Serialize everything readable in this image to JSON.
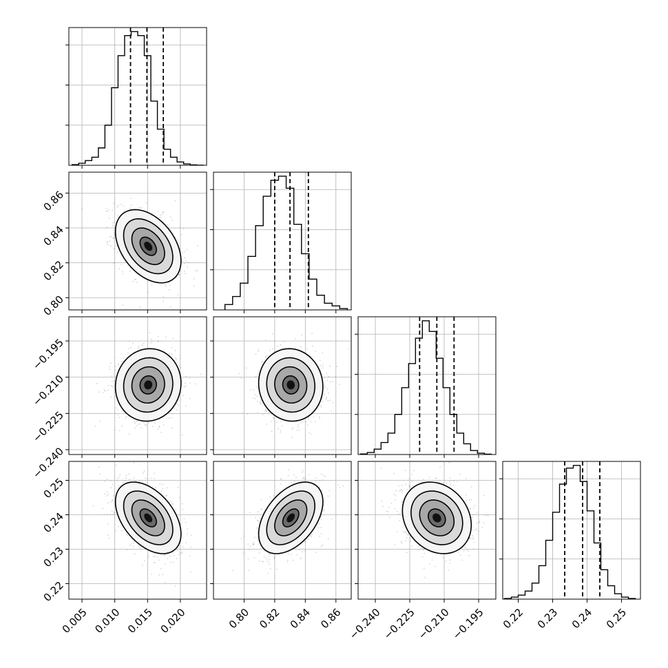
{
  "figure": {
    "type": "corner-plot",
    "background": "#ffffff",
    "panel_border_color": "#000000",
    "grid": true,
    "grid_color": "#b0b0b0",
    "scatter_color": "#888888",
    "density_colormap": [
      "#ffffff",
      "#000000"
    ],
    "quantile_line_style": "dashed"
  },
  "chart_data": [
    {
      "id": "hist-0",
      "type": "histogram",
      "row": 0,
      "col": 0,
      "xlim": [
        0.003,
        0.024
      ],
      "bins": [
        0.0035,
        0.0045,
        0.0055,
        0.0065,
        0.0075,
        0.0085,
        0.0095,
        0.0105,
        0.0115,
        0.0125,
        0.0135,
        0.0145,
        0.0155,
        0.0165,
        0.0175,
        0.0185,
        0.0195,
        0.0205,
        0.0215,
        0.0225,
        0.0235
      ],
      "counts": [
        0.005,
        0.015,
        0.035,
        0.06,
        0.13,
        0.3,
        0.58,
        0.82,
        0.97,
        1.0,
        0.97,
        0.82,
        0.48,
        0.27,
        0.12,
        0.06,
        0.025,
        0.01,
        0.003,
        0.001
      ],
      "quantiles": [
        0.0124,
        0.0149,
        0.0174
      ]
    },
    {
      "id": "hist-1",
      "type": "histogram",
      "row": 1,
      "col": 1,
      "xlim": [
        0.78,
        0.87
      ],
      "bins": [
        0.7875,
        0.7925,
        0.7975,
        0.8025,
        0.8075,
        0.8125,
        0.8175,
        0.8225,
        0.8275,
        0.8325,
        0.8375,
        0.8425,
        0.8475,
        0.8525,
        0.8575,
        0.8625,
        0.8675
      ],
      "counts": [
        0.04,
        0.1,
        0.2,
        0.4,
        0.63,
        0.85,
        0.97,
        1.0,
        0.91,
        0.64,
        0.42,
        0.23,
        0.11,
        0.05,
        0.03,
        0.01
      ],
      "quantiles": [
        0.82,
        0.83,
        0.842
      ]
    },
    {
      "id": "hist-2",
      "type": "histogram",
      "row": 2,
      "col": 2,
      "xlim": [
        -0.2475,
        -0.1875
      ],
      "bins": [
        -0.2465,
        -0.2435,
        -0.2405,
        -0.2375,
        -0.2345,
        -0.2315,
        -0.2285,
        -0.2255,
        -0.2225,
        -0.2195,
        -0.2165,
        -0.2135,
        -0.2105,
        -0.2075,
        -0.2045,
        -0.2015,
        -0.1985,
        -0.1955,
        -0.1925,
        -0.1895
      ],
      "counts": [
        0.004,
        0.015,
        0.04,
        0.09,
        0.16,
        0.3,
        0.5,
        0.68,
        0.87,
        1.0,
        0.92,
        0.72,
        0.5,
        0.3,
        0.16,
        0.08,
        0.03,
        0.01,
        0.003
      ],
      "quantiles": [
        -0.2207,
        -0.2132,
        -0.2057
      ]
    },
    {
      "id": "hist-3",
      "type": "histogram",
      "row": 3,
      "col": 3,
      "xlim": [
        0.2155,
        0.2555
      ],
      "bins": [
        0.216,
        0.218,
        0.22,
        0.222,
        0.224,
        0.226,
        0.228,
        0.23,
        0.232,
        0.234,
        0.236,
        0.238,
        0.24,
        0.242,
        0.244,
        0.246,
        0.248,
        0.25,
        0.252,
        0.254
      ],
      "counts": [
        0.005,
        0.015,
        0.03,
        0.06,
        0.12,
        0.25,
        0.44,
        0.65,
        0.86,
        0.98,
        1.0,
        0.88,
        0.66,
        0.42,
        0.22,
        0.1,
        0.04,
        0.015,
        0.005
      ],
      "quantiles": [
        0.2335,
        0.2387,
        0.2437
      ]
    },
    {
      "id": "joint-1-0",
      "type": "scatter-density-contour",
      "row": 1,
      "col": 0,
      "xlim": [
        0.003,
        0.024
      ],
      "ylim": [
        0.793,
        0.872
      ],
      "center": [
        0.0151,
        0.8295
      ],
      "sigma": [
        0.0025,
        0.0105
      ],
      "rho": -0.4,
      "contour_levels_sigma": [
        0.5,
        1.0,
        1.5,
        2.0
      ]
    },
    {
      "id": "joint-2-0",
      "type": "scatter-density-contour",
      "row": 2,
      "col": 0,
      "xlim": [
        0.003,
        0.024
      ],
      "ylim": [
        -0.242,
        -0.185
      ],
      "center": [
        0.0151,
        -0.2132
      ],
      "sigma": [
        0.0025,
        0.0075
      ],
      "rho": 0.05,
      "contour_levels_sigma": [
        0.5,
        1.0,
        1.5,
        2.0
      ]
    },
    {
      "id": "joint-2-1",
      "type": "scatter-density-contour",
      "row": 2,
      "col": 1,
      "xlim": [
        0.78,
        0.87
      ],
      "ylim": [
        -0.242,
        -0.185
      ],
      "center": [
        0.8305,
        -0.2132
      ],
      "sigma": [
        0.0105,
        0.0075
      ],
      "rho": -0.05,
      "contour_levels_sigma": [
        0.5,
        1.0,
        1.5,
        2.0
      ]
    },
    {
      "id": "joint-3-0",
      "type": "scatter-density-contour",
      "row": 3,
      "col": 0,
      "xlim": [
        0.003,
        0.024
      ],
      "ylim": [
        0.2155,
        0.2555
      ],
      "center": [
        0.0151,
        0.2391
      ],
      "sigma": [
        0.0025,
        0.0052
      ],
      "rho": -0.45,
      "contour_levels_sigma": [
        0.5,
        1.0,
        1.5,
        2.0
      ]
    },
    {
      "id": "joint-3-1",
      "type": "scatter-density-contour",
      "row": 3,
      "col": 1,
      "xlim": [
        0.78,
        0.87
      ],
      "ylim": [
        0.2155,
        0.2555
      ],
      "center": [
        0.8305,
        0.2391
      ],
      "sigma": [
        0.0105,
        0.0052
      ],
      "rho": 0.45,
      "contour_levels_sigma": [
        0.5,
        1.0,
        1.5,
        2.0
      ]
    },
    {
      "id": "joint-3-2",
      "type": "scatter-density-contour",
      "row": 3,
      "col": 2,
      "xlim": [
        -0.2475,
        -0.1875
      ],
      "ylim": [
        0.2155,
        0.2555
      ],
      "center": [
        -0.2132,
        0.2391
      ],
      "sigma": [
        0.0075,
        0.0052
      ],
      "rho": -0.2,
      "contour_levels_sigma": [
        0.5,
        1.0,
        1.5,
        2.0
      ]
    }
  ],
  "axes": {
    "x_ticks": [
      [
        {
          "v": 0.005,
          "t": "0.005"
        },
        {
          "v": 0.01,
          "t": "0.010"
        },
        {
          "v": 0.015,
          "t": "0.015"
        },
        {
          "v": 0.02,
          "t": "0.020"
        }
      ],
      [
        {
          "v": 0.8,
          "t": "0.80"
        },
        {
          "v": 0.82,
          "t": "0.82"
        },
        {
          "v": 0.84,
          "t": "0.84"
        },
        {
          "v": 0.86,
          "t": "0.86"
        }
      ],
      [
        {
          "v": -0.24,
          "t": "−0.240"
        },
        {
          "v": -0.225,
          "t": "−0.225"
        },
        {
          "v": -0.21,
          "t": "−0.210"
        },
        {
          "v": -0.195,
          "t": "−0.195"
        }
      ],
      [
        {
          "v": 0.22,
          "t": "0.22"
        },
        {
          "v": 0.23,
          "t": "0.23"
        },
        {
          "v": 0.24,
          "t": "0.24"
        },
        {
          "v": 0.25,
          "t": "0.25"
        }
      ]
    ],
    "y_ticks": {
      "1": [
        {
          "v": 0.8,
          "t": "0.80"
        },
        {
          "v": 0.82,
          "t": "0.82"
        },
        {
          "v": 0.84,
          "t": "0.84"
        },
        {
          "v": 0.86,
          "t": "0.86"
        }
      ],
      "2": [
        {
          "v": -0.24,
          "t": "−0.240"
        },
        {
          "v": -0.225,
          "t": "−0.225"
        },
        {
          "v": -0.21,
          "t": "−0.210"
        },
        {
          "v": -0.195,
          "t": "−0.195"
        }
      ],
      "3": [
        {
          "v": 0.22,
          "t": "0.22"
        },
        {
          "v": 0.23,
          "t": "0.23"
        },
        {
          "v": 0.24,
          "t": "0.24"
        },
        {
          "v": 0.25,
          "t": "0.25"
        }
      ]
    }
  }
}
